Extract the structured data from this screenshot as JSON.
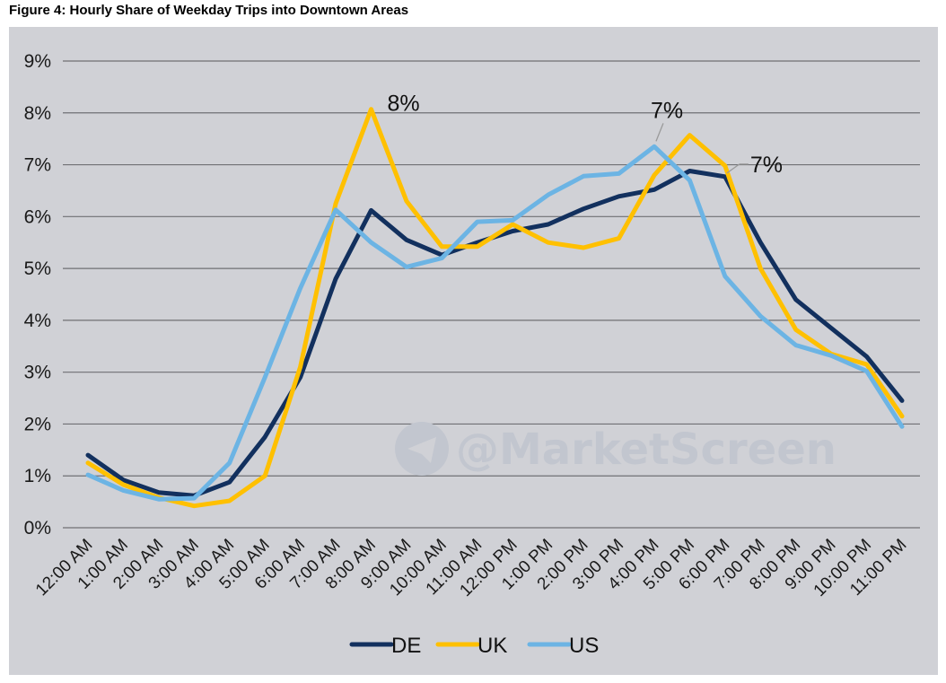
{
  "figure_title": "Figure 4: Hourly Share of Weekday Trips into Downtown Areas",
  "watermark": "@MarketScreen",
  "chart_data": {
    "type": "line",
    "title": "Figure 4: Hourly Share of Weekday Trips into Downtown Areas",
    "xlabel": "",
    "ylabel": "",
    "ylim": [
      0,
      9
    ],
    "grid": true,
    "legend_position": "bottom",
    "y_ticks": [
      "0%",
      "1%",
      "2%",
      "3%",
      "4%",
      "5%",
      "6%",
      "7%",
      "8%",
      "9%"
    ],
    "categories": [
      "12:00 AM",
      "1:00 AM",
      "2:00 AM",
      "3:00 AM",
      "4:00 AM",
      "5:00 AM",
      "6:00 AM",
      "7:00 AM",
      "8:00 AM",
      "9:00 AM",
      "10:00 AM",
      "11:00 AM",
      "12:00 PM",
      "1:00 PM",
      "2:00 PM",
      "3:00 PM",
      "4:00 PM",
      "5:00 PM",
      "6:00 PM",
      "7:00 PM",
      "8:00 PM",
      "9:00 PM",
      "10:00 PM",
      "11:00 PM"
    ],
    "series": [
      {
        "name": "DE",
        "color": "#12305e",
        "values": [
          1.4,
          0.92,
          0.68,
          0.62,
          0.88,
          1.75,
          2.9,
          4.8,
          6.12,
          5.55,
          5.26,
          5.5,
          5.72,
          5.85,
          6.15,
          6.39,
          6.52,
          6.88,
          6.77,
          5.5,
          4.4,
          3.85,
          3.3,
          2.45
        ]
      },
      {
        "name": "UK",
        "color": "#ffc000",
        "values": [
          1.25,
          0.83,
          0.58,
          0.42,
          0.52,
          1.0,
          3.1,
          6.25,
          8.07,
          6.3,
          5.42,
          5.42,
          5.85,
          5.5,
          5.4,
          5.58,
          6.8,
          7.57,
          6.98,
          5.0,
          3.82,
          3.35,
          3.15,
          2.15
        ]
      },
      {
        "name": "US",
        "color": "#6cb4e4",
        "values": [
          1.02,
          0.72,
          0.55,
          0.57,
          1.25,
          2.9,
          4.62,
          6.13,
          5.5,
          5.03,
          5.2,
          5.9,
          5.93,
          6.42,
          6.78,
          6.83,
          7.35,
          6.7,
          4.85,
          4.08,
          3.52,
          3.32,
          3.02,
          1.95
        ]
      }
    ],
    "annotations": [
      {
        "text": "8%",
        "series": "UK",
        "category": "8:00 AM"
      },
      {
        "text": "7%",
        "series": "US",
        "category": "4:00 PM"
      },
      {
        "text": "7%",
        "series": "DE",
        "category": "6:00 PM"
      }
    ]
  }
}
